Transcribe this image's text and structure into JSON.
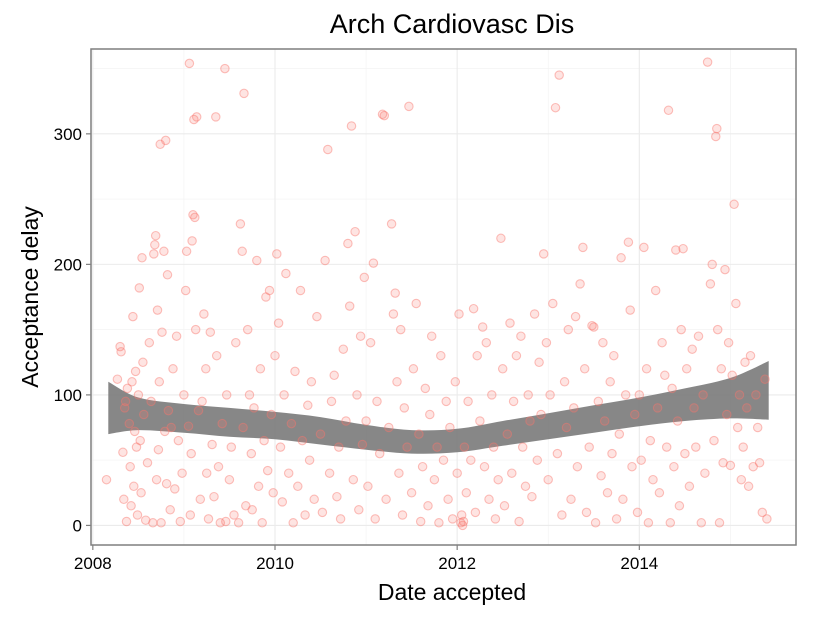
{
  "chart_data": {
    "type": "scatter",
    "title": "Arch Cardiovasc Dis",
    "xlabel": "Date accepted",
    "ylabel": "Acceptance delay",
    "x_unit": "year",
    "xlim": [
      2007.98,
      2015.72
    ],
    "ylim": [
      -15,
      365
    ],
    "x_ticks": [
      2008,
      2010,
      2012,
      2014
    ],
    "x_tick_labels": [
      "2008",
      "2010",
      "2012",
      "2014"
    ],
    "y_ticks": [
      0,
      100,
      200,
      300
    ],
    "y_tick_labels": [
      "0",
      "100",
      "200",
      "300"
    ],
    "grid": true,
    "point_color": "#f8766d",
    "band_color": "#7a7a7a",
    "smooth_band": {
      "x": [
        2008.17,
        2008.5,
        2009.0,
        2009.5,
        2010.0,
        2010.5,
        2011.0,
        2011.5,
        2012.0,
        2012.5,
        2013.0,
        2013.5,
        2014.0,
        2014.5,
        2015.0,
        2015.42
      ],
      "lower": [
        70,
        73,
        71,
        68,
        66,
        62,
        58,
        55,
        56,
        61,
        66,
        71,
        76,
        80,
        82,
        81
      ],
      "upper": [
        110,
        98,
        93,
        90,
        87,
        83,
        77,
        73,
        74,
        80,
        86,
        92,
        98,
        105,
        113,
        126
      ]
    },
    "points": [
      [
        2008.15,
        35
      ],
      [
        2008.27,
        112
      ],
      [
        2008.3,
        137
      ],
      [
        2008.31,
        133
      ],
      [
        2008.33,
        56
      ],
      [
        2008.34,
        20
      ],
      [
        2008.35,
        90
      ],
      [
        2008.36,
        95
      ],
      [
        2008.37,
        3
      ],
      [
        2008.38,
        105
      ],
      [
        2008.4,
        78
      ],
      [
        2008.41,
        45
      ],
      [
        2008.42,
        15
      ],
      [
        2008.43,
        110
      ],
      [
        2008.44,
        160
      ],
      [
        2008.45,
        30
      ],
      [
        2008.46,
        72
      ],
      [
        2008.47,
        118
      ],
      [
        2008.48,
        60
      ],
      [
        2008.49,
        8
      ],
      [
        2008.5,
        100
      ],
      [
        2008.51,
        182
      ],
      [
        2008.52,
        65
      ],
      [
        2008.53,
        25
      ],
      [
        2008.54,
        205
      ],
      [
        2008.55,
        125
      ],
      [
        2008.56,
        85
      ],
      [
        2008.58,
        4
      ],
      [
        2008.6,
        48
      ],
      [
        2008.62,
        140
      ],
      [
        2008.64,
        95
      ],
      [
        2008.66,
        2
      ],
      [
        2008.67,
        208
      ],
      [
        2008.68,
        215
      ],
      [
        2008.69,
        222
      ],
      [
        2008.7,
        35
      ],
      [
        2008.71,
        165
      ],
      [
        2008.72,
        58
      ],
      [
        2008.73,
        110
      ],
      [
        2008.74,
        292
      ],
      [
        2008.75,
        2
      ],
      [
        2008.76,
        148
      ],
      [
        2008.78,
        210
      ],
      [
        2008.79,
        72
      ],
      [
        2008.8,
        295
      ],
      [
        2008.81,
        32
      ],
      [
        2008.82,
        192
      ],
      [
        2008.83,
        88
      ],
      [
        2008.85,
        12
      ],
      [
        2008.86,
        75
      ],
      [
        2008.88,
        120
      ],
      [
        2008.9,
        28
      ],
      [
        2008.92,
        145
      ],
      [
        2008.94,
        65
      ],
      [
        2008.96,
        3
      ],
      [
        2008.98,
        40
      ],
      [
        2009.0,
        100
      ],
      [
        2009.02,
        180
      ],
      [
        2009.03,
        210
      ],
      [
        2009.05,
        76
      ],
      [
        2009.06,
        354
      ],
      [
        2009.07,
        8
      ],
      [
        2009.08,
        55
      ],
      [
        2009.09,
        218
      ],
      [
        2009.1,
        238
      ],
      [
        2009.11,
        311
      ],
      [
        2009.12,
        236
      ],
      [
        2009.13,
        150
      ],
      [
        2009.14,
        313
      ],
      [
        2009.16,
        88
      ],
      [
        2009.18,
        20
      ],
      [
        2009.2,
        95
      ],
      [
        2009.22,
        162
      ],
      [
        2009.24,
        120
      ],
      [
        2009.25,
        40
      ],
      [
        2009.27,
        5
      ],
      [
        2009.29,
        148
      ],
      [
        2009.31,
        62
      ],
      [
        2009.33,
        22
      ],
      [
        2009.35,
        313
      ],
      [
        2009.36,
        130
      ],
      [
        2009.38,
        45
      ],
      [
        2009.4,
        2
      ],
      [
        2009.42,
        78
      ],
      [
        2009.45,
        350
      ],
      [
        2009.46,
        3
      ],
      [
        2009.47,
        100
      ],
      [
        2009.5,
        35
      ],
      [
        2009.52,
        60
      ],
      [
        2009.55,
        8
      ],
      [
        2009.57,
        140
      ],
      [
        2009.6,
        2
      ],
      [
        2009.62,
        231
      ],
      [
        2009.64,
        210
      ],
      [
        2009.65,
        75
      ],
      [
        2009.66,
        331
      ],
      [
        2009.68,
        15
      ],
      [
        2009.7,
        150
      ],
      [
        2009.72,
        100
      ],
      [
        2009.74,
        55
      ],
      [
        2009.75,
        12
      ],
      [
        2009.77,
        90
      ],
      [
        2009.8,
        203
      ],
      [
        2009.82,
        30
      ],
      [
        2009.84,
        120
      ],
      [
        2009.86,
        2
      ],
      [
        2009.88,
        65
      ],
      [
        2009.9,
        175
      ],
      [
        2009.92,
        42
      ],
      [
        2009.94,
        180
      ],
      [
        2009.96,
        85
      ],
      [
        2009.98,
        25
      ],
      [
        2010.0,
        130
      ],
      [
        2010.02,
        208
      ],
      [
        2010.04,
        155
      ],
      [
        2010.06,
        60
      ],
      [
        2010.08,
        18
      ],
      [
        2010.1,
        100
      ],
      [
        2010.12,
        193
      ],
      [
        2010.15,
        40
      ],
      [
        2010.18,
        78
      ],
      [
        2010.2,
        2
      ],
      [
        2010.22,
        118
      ],
      [
        2010.25,
        30
      ],
      [
        2010.28,
        180
      ],
      [
        2010.3,
        65
      ],
      [
        2010.33,
        8
      ],
      [
        2010.36,
        92
      ],
      [
        2010.38,
        50
      ],
      [
        2010.4,
        110
      ],
      [
        2010.43,
        20
      ],
      [
        2010.46,
        160
      ],
      [
        2010.5,
        70
      ],
      [
        2010.52,
        10
      ],
      [
        2010.55,
        203
      ],
      [
        2010.58,
        288
      ],
      [
        2010.6,
        40
      ],
      [
        2010.62,
        95
      ],
      [
        2010.65,
        115
      ],
      [
        2010.68,
        22
      ],
      [
        2010.7,
        60
      ],
      [
        2010.72,
        5
      ],
      [
        2010.75,
        135
      ],
      [
        2010.78,
        80
      ],
      [
        2010.8,
        216
      ],
      [
        2010.82,
        168
      ],
      [
        2010.84,
        306
      ],
      [
        2010.86,
        35
      ],
      [
        2010.88,
        225
      ],
      [
        2010.9,
        100
      ],
      [
        2010.92,
        12
      ],
      [
        2010.94,
        145
      ],
      [
        2010.96,
        62
      ],
      [
        2010.98,
        190
      ],
      [
        2011.0,
        80
      ],
      [
        2011.02,
        30
      ],
      [
        2011.05,
        140
      ],
      [
        2011.08,
        201
      ],
      [
        2011.1,
        5
      ],
      [
        2011.12,
        95
      ],
      [
        2011.15,
        55
      ],
      [
        2011.18,
        315
      ],
      [
        2011.2,
        314
      ],
      [
        2011.22,
        20
      ],
      [
        2011.25,
        75
      ],
      [
        2011.28,
        231
      ],
      [
        2011.3,
        162
      ],
      [
        2011.32,
        178
      ],
      [
        2011.34,
        110
      ],
      [
        2011.36,
        40
      ],
      [
        2011.38,
        150
      ],
      [
        2011.4,
        8
      ],
      [
        2011.42,
        90
      ],
      [
        2011.45,
        60
      ],
      [
        2011.47,
        321
      ],
      [
        2011.5,
        25
      ],
      [
        2011.52,
        120
      ],
      [
        2011.55,
        170
      ],
      [
        2011.58,
        70
      ],
      [
        2011.6,
        3
      ],
      [
        2011.62,
        45
      ],
      [
        2011.65,
        105
      ],
      [
        2011.68,
        15
      ],
      [
        2011.7,
        85
      ],
      [
        2011.72,
        145
      ],
      [
        2011.75,
        35
      ],
      [
        2011.78,
        60
      ],
      [
        2011.8,
        2
      ],
      [
        2011.82,
        130
      ],
      [
        2011.85,
        50
      ],
      [
        2011.88,
        95
      ],
      [
        2011.9,
        20
      ],
      [
        2011.92,
        75
      ],
      [
        2011.95,
        5
      ],
      [
        2011.98,
        110
      ],
      [
        2012.0,
        40
      ],
      [
        2012.02,
        162
      ],
      [
        2012.04,
        2
      ],
      [
        2012.05,
        8
      ],
      [
        2012.06,
        0
      ],
      [
        2012.07,
        3
      ],
      [
        2012.08,
        60
      ],
      [
        2012.1,
        25
      ],
      [
        2012.12,
        95
      ],
      [
        2012.15,
        50
      ],
      [
        2012.18,
        166
      ],
      [
        2012.2,
        10
      ],
      [
        2012.22,
        130
      ],
      [
        2012.25,
        80
      ],
      [
        2012.28,
        152
      ],
      [
        2012.3,
        45
      ],
      [
        2012.32,
        140
      ],
      [
        2012.35,
        20
      ],
      [
        2012.38,
        100
      ],
      [
        2012.4,
        60
      ],
      [
        2012.42,
        5
      ],
      [
        2012.45,
        35
      ],
      [
        2012.48,
        220
      ],
      [
        2012.5,
        120
      ],
      [
        2012.52,
        15
      ],
      [
        2012.55,
        70
      ],
      [
        2012.58,
        155
      ],
      [
        2012.6,
        40
      ],
      [
        2012.62,
        95
      ],
      [
        2012.65,
        130
      ],
      [
        2012.68,
        3
      ],
      [
        2012.7,
        145
      ],
      [
        2012.72,
        60
      ],
      [
        2012.75,
        30
      ],
      [
        2012.78,
        100
      ],
      [
        2012.8,
        80
      ],
      [
        2012.82,
        22
      ],
      [
        2012.85,
        162
      ],
      [
        2012.88,
        50
      ],
      [
        2012.9,
        125
      ],
      [
        2012.92,
        85
      ],
      [
        2012.95,
        208
      ],
      [
        2012.98,
        140
      ],
      [
        2013.0,
        35
      ],
      [
        2013.02,
        100
      ],
      [
        2013.05,
        170
      ],
      [
        2013.08,
        320
      ],
      [
        2013.1,
        55
      ],
      [
        2013.12,
        345
      ],
      [
        2013.15,
        8
      ],
      [
        2013.18,
        110
      ],
      [
        2013.2,
        75
      ],
      [
        2013.22,
        150
      ],
      [
        2013.25,
        20
      ],
      [
        2013.28,
        90
      ],
      [
        2013.3,
        160
      ],
      [
        2013.32,
        45
      ],
      [
        2013.35,
        185
      ],
      [
        2013.38,
        213
      ],
      [
        2013.4,
        120
      ],
      [
        2013.42,
        10
      ],
      [
        2013.45,
        60
      ],
      [
        2013.48,
        153
      ],
      [
        2013.5,
        152
      ],
      [
        2013.52,
        2
      ],
      [
        2013.55,
        95
      ],
      [
        2013.58,
        38
      ],
      [
        2013.6,
        140
      ],
      [
        2013.62,
        80
      ],
      [
        2013.65,
        25
      ],
      [
        2013.68,
        110
      ],
      [
        2013.7,
        55
      ],
      [
        2013.72,
        130
      ],
      [
        2013.75,
        5
      ],
      [
        2013.78,
        70
      ],
      [
        2013.8,
        205
      ],
      [
        2013.82,
        20
      ],
      [
        2013.85,
        100
      ],
      [
        2013.88,
        217
      ],
      [
        2013.9,
        165
      ],
      [
        2013.92,
        45
      ],
      [
        2013.95,
        85
      ],
      [
        2013.98,
        10
      ],
      [
        2014.0,
        100
      ],
      [
        2014.02,
        50
      ],
      [
        2014.05,
        213
      ],
      [
        2014.08,
        120
      ],
      [
        2014.1,
        2
      ],
      [
        2014.12,
        65
      ],
      [
        2014.15,
        35
      ],
      [
        2014.18,
        180
      ],
      [
        2014.2,
        90
      ],
      [
        2014.22,
        25
      ],
      [
        2014.25,
        140
      ],
      [
        2014.28,
        115
      ],
      [
        2014.3,
        60
      ],
      [
        2014.32,
        318
      ],
      [
        2014.34,
        2
      ],
      [
        2014.36,
        105
      ],
      [
        2014.38,
        45
      ],
      [
        2014.4,
        211
      ],
      [
        2014.42,
        80
      ],
      [
        2014.44,
        15
      ],
      [
        2014.46,
        150
      ],
      [
        2014.48,
        212
      ],
      [
        2014.5,
        55
      ],
      [
        2014.52,
        120
      ],
      [
        2014.55,
        30
      ],
      [
        2014.58,
        135
      ],
      [
        2014.6,
        90
      ],
      [
        2014.62,
        60
      ],
      [
        2014.65,
        145
      ],
      [
        2014.68,
        2
      ],
      [
        2014.7,
        100
      ],
      [
        2014.72,
        40
      ],
      [
        2014.75,
        355
      ],
      [
        2014.78,
        185
      ],
      [
        2014.8,
        200
      ],
      [
        2014.82,
        65
      ],
      [
        2014.84,
        298
      ],
      [
        2014.85,
        304
      ],
      [
        2014.86,
        150
      ],
      [
        2014.88,
        2
      ],
      [
        2014.9,
        120
      ],
      [
        2014.92,
        48
      ],
      [
        2014.94,
        196
      ],
      [
        2014.96,
        85
      ],
      [
        2014.98,
        140
      ],
      [
        2015.0,
        46
      ],
      [
        2015.02,
        115
      ],
      [
        2015.04,
        246
      ],
      [
        2015.06,
        170
      ],
      [
        2015.08,
        75
      ],
      [
        2015.1,
        100
      ],
      [
        2015.12,
        35
      ],
      [
        2015.14,
        60
      ],
      [
        2015.16,
        125
      ],
      [
        2015.18,
        90
      ],
      [
        2015.2,
        30
      ],
      [
        2015.22,
        130
      ],
      [
        2015.25,
        45
      ],
      [
        2015.28,
        100
      ],
      [
        2015.3,
        75
      ],
      [
        2015.32,
        48
      ],
      [
        2015.35,
        10
      ],
      [
        2015.38,
        112
      ],
      [
        2015.4,
        5
      ]
    ]
  }
}
